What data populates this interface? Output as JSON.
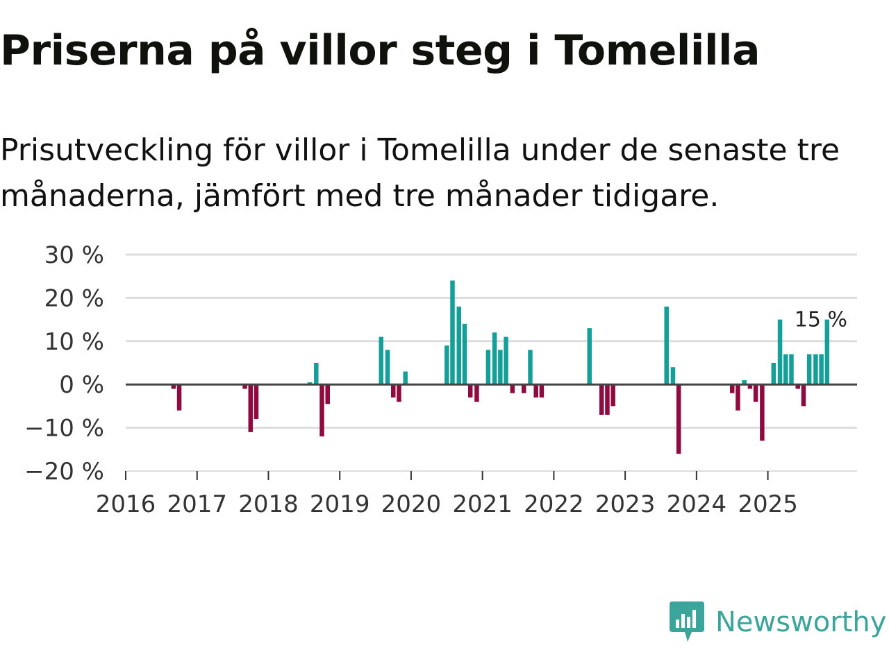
{
  "title": "Priserna på villor steg i Tomelilla",
  "subtitle": "Prisutveckling för villor i Tomelilla under de senaste tre månaderna, jämfört med tre månader tidigare.",
  "brand": {
    "name": "Newsworthy",
    "icon": "newsworthy-logo-icon",
    "color": "#3ca59b"
  },
  "colors": {
    "positive": "#14a098",
    "negative": "#8e0a3f",
    "grid": "#dddddd",
    "zero": "#444444"
  },
  "chart_data": {
    "type": "bar",
    "unit": "%",
    "ylim": [
      -20,
      30
    ],
    "yticks": [
      30,
      20,
      10,
      0,
      -10,
      -20
    ],
    "ytick_labels": [
      "30 %",
      "20 %",
      "10 %",
      "0 %",
      "−10 %",
      "−20 %"
    ],
    "x_range": [
      2016.0,
      2026.25
    ],
    "xtick_labels": [
      "2016",
      "2017",
      "2018",
      "2019",
      "2020",
      "2021",
      "2022",
      "2023",
      "2024",
      "2025"
    ],
    "last_label": "15 %",
    "series": [
      {
        "x": 2016.67,
        "value": -1
      },
      {
        "x": 2016.75,
        "value": -6
      },
      {
        "x": 2017.67,
        "value": -1
      },
      {
        "x": 2017.75,
        "value": -11
      },
      {
        "x": 2017.83,
        "value": -8
      },
      {
        "x": 2018.58,
        "value": 0.5
      },
      {
        "x": 2018.67,
        "value": 5
      },
      {
        "x": 2018.75,
        "value": -12
      },
      {
        "x": 2018.83,
        "value": -4.5
      },
      {
        "x": 2019.58,
        "value": 11
      },
      {
        "x": 2019.67,
        "value": 8
      },
      {
        "x": 2019.75,
        "value": -3
      },
      {
        "x": 2019.83,
        "value": -4
      },
      {
        "x": 2019.92,
        "value": 3
      },
      {
        "x": 2020.5,
        "value": 9
      },
      {
        "x": 2020.58,
        "value": 24
      },
      {
        "x": 2020.67,
        "value": 18
      },
      {
        "x": 2020.75,
        "value": 14
      },
      {
        "x": 2020.83,
        "value": -3
      },
      {
        "x": 2020.92,
        "value": -4
      },
      {
        "x": 2021.08,
        "value": 8
      },
      {
        "x": 2021.17,
        "value": 12
      },
      {
        "x": 2021.25,
        "value": 8
      },
      {
        "x": 2021.33,
        "value": 11
      },
      {
        "x": 2021.42,
        "value": -2
      },
      {
        "x": 2021.58,
        "value": -2
      },
      {
        "x": 2021.67,
        "value": 8
      },
      {
        "x": 2021.75,
        "value": -3
      },
      {
        "x": 2021.83,
        "value": -3
      },
      {
        "x": 2022.5,
        "value": 13
      },
      {
        "x": 2022.67,
        "value": -7
      },
      {
        "x": 2022.75,
        "value": -7
      },
      {
        "x": 2022.83,
        "value": -5
      },
      {
        "x": 2023.58,
        "value": 18
      },
      {
        "x": 2023.67,
        "value": 4
      },
      {
        "x": 2023.75,
        "value": -16
      },
      {
        "x": 2024.5,
        "value": -2
      },
      {
        "x": 2024.58,
        "value": -6
      },
      {
        "x": 2024.67,
        "value": 1
      },
      {
        "x": 2024.75,
        "value": -1
      },
      {
        "x": 2024.83,
        "value": -4
      },
      {
        "x": 2024.92,
        "value": -13
      },
      {
        "x": 2025.08,
        "value": 5
      },
      {
        "x": 2025.17,
        "value": 15
      },
      {
        "x": 2025.25,
        "value": 7
      },
      {
        "x": 2025.33,
        "value": 7
      },
      {
        "x": 2025.42,
        "value": -1
      },
      {
        "x": 2025.5,
        "value": -5
      },
      {
        "x": 2025.58,
        "value": 7
      },
      {
        "x": 2025.67,
        "value": 7
      },
      {
        "x": 2025.75,
        "value": 7
      },
      {
        "x": 2025.83,
        "value": 15
      }
    ]
  }
}
